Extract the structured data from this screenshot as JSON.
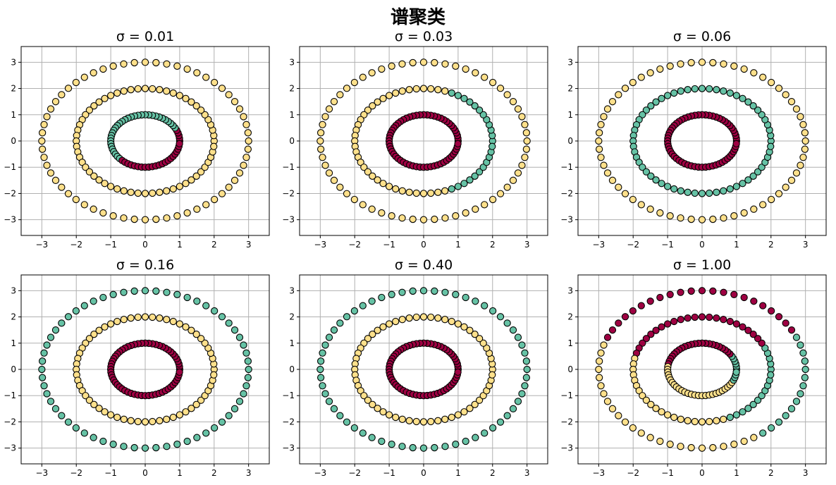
{
  "figure": {
    "suptitle": "谱聚类"
  },
  "colors": {
    "cluster_0": "#9E0142",
    "cluster_1": "#66C2A5",
    "cluster_2": "#FEE08B",
    "edge": "#000000",
    "grid": "#b0b0b0"
  },
  "chart_data": [
    {
      "type": "scatter",
      "title": "σ = 0.01",
      "xlim": [
        -3.6,
        3.6
      ],
      "ylim": [
        -3.6,
        3.6
      ],
      "xticks": [
        -3,
        -2,
        -1,
        0,
        1,
        2,
        3
      ],
      "yticks": [
        -3,
        -2,
        -1,
        0,
        1,
        2,
        3
      ],
      "grid": true,
      "rings": [
        {
          "radius": 1,
          "points": 60,
          "clusters": [
            {
              "cluster": 1,
              "from_deg": 30,
              "to_deg": 225
            }
          ],
          "default_cluster": 0
        },
        {
          "radius": 2,
          "points": 60,
          "clusters": [],
          "default_cluster": 2
        },
        {
          "radius": 3,
          "points": 60,
          "clusters": [],
          "default_cluster": 2
        }
      ]
    },
    {
      "type": "scatter",
      "title": "σ = 0.03",
      "xlim": [
        -3.6,
        3.6
      ],
      "ylim": [
        -3.6,
        3.6
      ],
      "xticks": [
        -3,
        -2,
        -1,
        0,
        1,
        2,
        3
      ],
      "yticks": [
        -3,
        -2,
        -1,
        0,
        1,
        2,
        3
      ],
      "grid": true,
      "rings": [
        {
          "radius": 1,
          "points": 60,
          "clusters": [],
          "default_cluster": 0
        },
        {
          "radius": 2,
          "points": 60,
          "clusters": [
            {
              "cluster": 1,
              "from_deg": -70,
              "to_deg": 70
            }
          ],
          "default_cluster": 2
        },
        {
          "radius": 3,
          "points": 60,
          "clusters": [],
          "default_cluster": 2
        }
      ]
    },
    {
      "type": "scatter",
      "title": "σ = 0.06",
      "xlim": [
        -3.6,
        3.6
      ],
      "ylim": [
        -3.6,
        3.6
      ],
      "xticks": [
        -3,
        -2,
        -1,
        0,
        1,
        2,
        3
      ],
      "yticks": [
        -3,
        -2,
        -1,
        0,
        1,
        2,
        3
      ],
      "grid": true,
      "rings": [
        {
          "radius": 1,
          "points": 60,
          "clusters": [],
          "default_cluster": 0
        },
        {
          "radius": 2,
          "points": 60,
          "clusters": [],
          "default_cluster": 1
        },
        {
          "radius": 3,
          "points": 60,
          "clusters": [],
          "default_cluster": 2
        }
      ]
    },
    {
      "type": "scatter",
      "title": "σ = 0.16",
      "xlim": [
        -3.6,
        3.6
      ],
      "ylim": [
        -3.6,
        3.6
      ],
      "xticks": [
        -3,
        -2,
        -1,
        0,
        1,
        2,
        3
      ],
      "yticks": [
        -3,
        -2,
        -1,
        0,
        1,
        2,
        3
      ],
      "grid": true,
      "rings": [
        {
          "radius": 1,
          "points": 60,
          "clusters": [],
          "default_cluster": 0
        },
        {
          "radius": 2,
          "points": 60,
          "clusters": [],
          "default_cluster": 2
        },
        {
          "radius": 3,
          "points": 60,
          "clusters": [],
          "default_cluster": 1
        }
      ]
    },
    {
      "type": "scatter",
      "title": "σ = 0.40",
      "xlim": [
        -3.6,
        3.6
      ],
      "ylim": [
        -3.6,
        3.6
      ],
      "xticks": [
        -3,
        -2,
        -1,
        0,
        1,
        2,
        3
      ],
      "yticks": [
        -3,
        -2,
        -1,
        0,
        1,
        2,
        3
      ],
      "grid": true,
      "rings": [
        {
          "radius": 1,
          "points": 60,
          "clusters": [],
          "default_cluster": 0
        },
        {
          "radius": 2,
          "points": 60,
          "clusters": [],
          "default_cluster": 2
        },
        {
          "radius": 3,
          "points": 60,
          "clusters": [],
          "default_cluster": 1
        }
      ]
    },
    {
      "type": "scatter",
      "title": "σ = 1.00",
      "xlim": [
        -3.6,
        3.6
      ],
      "ylim": [
        -3.6,
        3.6
      ],
      "xticks": [
        -3,
        -2,
        -1,
        0,
        1,
        2,
        3
      ],
      "yticks": [
        -3,
        -2,
        -1,
        0,
        1,
        2,
        3
      ],
      "grid": true,
      "rings": [
        {
          "radius": 1,
          "points": 60,
          "clusters": [
            {
              "cluster": 2,
              "from_deg": 170,
              "to_deg": 330
            },
            {
              "cluster": 1,
              "from_deg": -30,
              "to_deg": 30
            }
          ],
          "default_cluster": 0
        },
        {
          "radius": 2,
          "points": 60,
          "clusters": [
            {
              "cluster": 0,
              "from_deg": 30,
              "to_deg": 165
            },
            {
              "cluster": 2,
              "from_deg": 165,
              "to_deg": 290
            }
          ],
          "default_cluster": 1
        },
        {
          "radius": 3,
          "points": 60,
          "clusters": [
            {
              "cluster": 0,
              "from_deg": 30,
              "to_deg": 160
            },
            {
              "cluster": 2,
              "from_deg": 160,
              "to_deg": 300
            }
          ],
          "default_cluster": 1
        }
      ]
    }
  ]
}
